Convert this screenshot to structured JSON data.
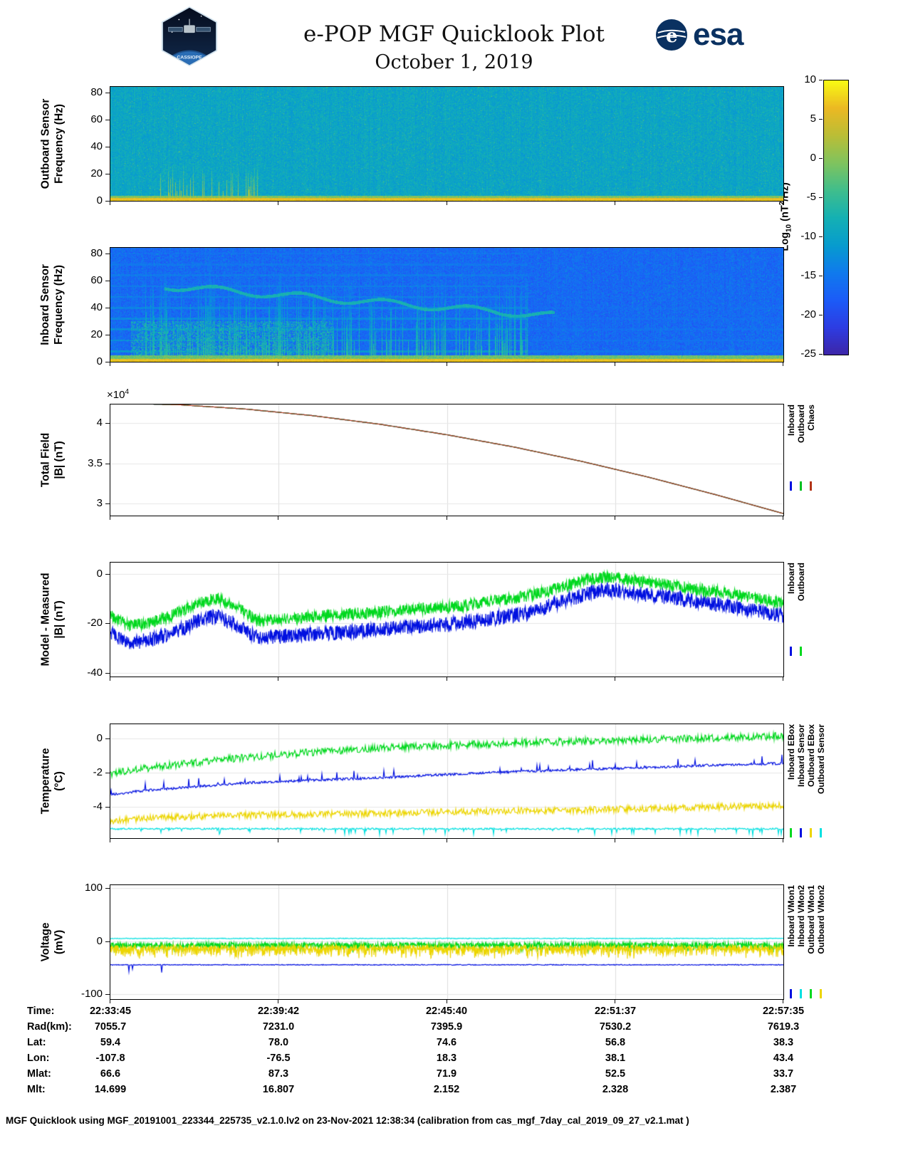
{
  "header": {
    "title": "e-POP MGF Quicklook Plot",
    "date": "October 1, 2019"
  },
  "logos": {
    "esa_text": "esa",
    "esa_emblem_letter": "e",
    "cassiope_text": "CASSIOPE"
  },
  "colors": {
    "esa_blue": "#0a3161",
    "chaos_red": "#b23418",
    "inboard_blue": "#0010e0",
    "outboard_green": "#00d81e",
    "yellow": "#ecd500",
    "cyan": "#00e0e0"
  },
  "colorbar": {
    "label_prefix": "Log",
    "label_sub": "10",
    "label_mid": " (nT",
    "label_sup": "2",
    "label_suffix": "/Hz)",
    "ticks": [
      10,
      5,
      0,
      -5,
      -10,
      -15,
      -20,
      -25
    ],
    "value_range": [
      -25,
      10
    ],
    "colormap": "parula"
  },
  "chart_data": [
    {
      "id": "outboard_spectrogram",
      "type": "heatmap",
      "ylabel": [
        "Outboard Sensor",
        "Frequency (Hz)"
      ],
      "ylim": [
        0,
        84
      ],
      "yticks": [
        0,
        20,
        40,
        60,
        80
      ],
      "time_start": "22:33:45",
      "time_end": "22:57:35",
      "value_range": [
        -25,
        10
      ],
      "background_level": -9.5,
      "noise_sigma": 2.4,
      "speckle": {
        "prob": 0.04,
        "boost": 6
      },
      "bottom_band": {
        "freq_max": 2.6,
        "level": 6.3,
        "edge_freq": 4.2,
        "edge_level": -0.5
      },
      "bursts": {
        "x_range": [
          0.07,
          0.23
        ],
        "freq_max": 30,
        "level": -1,
        "probability": 0.2
      }
    },
    {
      "id": "inboard_spectrogram",
      "type": "heatmap",
      "ylabel": [
        "Inboard Sensor",
        "Frequency (Hz)"
      ],
      "ylim": [
        0,
        84
      ],
      "yticks": [
        0,
        20,
        40,
        60,
        80
      ],
      "time_start": "22:33:45",
      "time_end": "22:57:35",
      "value_range": [
        -25,
        10
      ],
      "background_level": -16.5,
      "noise_sigma": 2.6,
      "speckle": {
        "prob": 0.05,
        "boost": 5
      },
      "bottom_band": {
        "freq_max": 2.6,
        "level": 6.3,
        "edge_freq": 5,
        "edge_level": -1.5
      },
      "harmonics": {
        "spacing": 8,
        "level": -11,
        "fade_x": 0.62
      },
      "bursts": {
        "x_range": [
          0.04,
          0.62
        ],
        "freq_max": 72,
        "level": -9,
        "probability": 0.3
      },
      "wavy_trace": {
        "x_range": [
          0.08,
          0.66
        ],
        "freq_start": 56,
        "freq_end": 34,
        "level": -7.5
      },
      "blob": {
        "x_range": [
          0.03,
          0.33
        ],
        "freq_max": 30,
        "level": -8
      }
    },
    {
      "id": "total_field",
      "type": "line",
      "ylabel": [
        "Total Field",
        "|B| (nT)"
      ],
      "ylim": [
        28500,
        42300
      ],
      "yticks": [
        30000,
        35000,
        40000
      ],
      "ytick_labels": [
        "3",
        "3.5",
        "4"
      ],
      "multiplier_prefix": "×10",
      "multiplier_exp": "4",
      "series": [
        {
          "name": "Inboard",
          "color": "#0010e0",
          "x": [
            0,
            0.1,
            0.2,
            0.3,
            0.4,
            0.5,
            0.6,
            0.7,
            0.8,
            0.9,
            1
          ],
          "y": [
            42450,
            42280,
            41740,
            40920,
            39850,
            38540,
            37010,
            35240,
            33260,
            31080,
            28750
          ]
        },
        {
          "name": "Outboard",
          "color": "#00c020",
          "x": [
            0,
            0.1,
            0.2,
            0.3,
            0.4,
            0.5,
            0.6,
            0.7,
            0.8,
            0.9,
            1
          ],
          "y": [
            42450,
            42280,
            41740,
            40920,
            39850,
            38540,
            37010,
            35240,
            33260,
            31080,
            28750
          ]
        },
        {
          "name": "Chaos",
          "color": "#b23418",
          "x": [
            0,
            0.1,
            0.2,
            0.3,
            0.4,
            0.5,
            0.6,
            0.7,
            0.8,
            0.9,
            1
          ],
          "y": [
            42450,
            42280,
            41740,
            40920,
            39850,
            38540,
            37010,
            35240,
            33260,
            31080,
            28750
          ]
        }
      ]
    },
    {
      "id": "model_minus_measured",
      "type": "line",
      "ylabel": [
        "Model - Measured",
        "|B| (nT)"
      ],
      "ylim": [
        -41.5,
        4.5
      ],
      "yticks": [
        -40,
        -20,
        0
      ],
      "series": [
        {
          "name": "Inboard",
          "color": "#0010e0",
          "noise": 3,
          "x": [
            0,
            0.03,
            0.07,
            0.1,
            0.13,
            0.16,
            0.19,
            0.22,
            0.27,
            0.32,
            0.37,
            0.42,
            0.47,
            0.52,
            0.57,
            0.62,
            0.66,
            0.7,
            0.73,
            0.76,
            0.8,
            0.84,
            0.88,
            0.92,
            0.96,
            1
          ],
          "y": [
            -24,
            -28,
            -26,
            -23,
            -19,
            -17,
            -21,
            -26,
            -25,
            -24,
            -23,
            -22,
            -21,
            -20,
            -18,
            -16,
            -12,
            -9,
            -6.5,
            -7,
            -8.5,
            -10,
            -11.5,
            -13,
            -15,
            -17
          ]
        },
        {
          "name": "Outboard",
          "color": "#00d81e",
          "noise": 2.4,
          "x": [
            0,
            0.03,
            0.07,
            0.1,
            0.13,
            0.16,
            0.19,
            0.22,
            0.27,
            0.32,
            0.37,
            0.42,
            0.47,
            0.52,
            0.57,
            0.62,
            0.66,
            0.7,
            0.73,
            0.76,
            0.8,
            0.84,
            0.88,
            0.92,
            0.96,
            1
          ],
          "y": [
            -17,
            -21,
            -19,
            -16,
            -12,
            -10,
            -14,
            -19,
            -18,
            -17,
            -16,
            -15,
            -14,
            -13,
            -11,
            -9,
            -6,
            -3,
            -1.5,
            -2,
            -3.5,
            -5,
            -6.5,
            -8,
            -10,
            -12
          ]
        }
      ]
    },
    {
      "id": "temperature",
      "type": "line",
      "ylabel": [
        "Temperature",
        "(°C)"
      ],
      "ylim": [
        -5.85,
        0.85
      ],
      "yticks": [
        -4,
        -2,
        0
      ],
      "series": [
        {
          "name": "Inboard EBox",
          "color": "#00d81e",
          "noise": 0.22,
          "x": [
            0,
            0.05,
            0.1,
            0.15,
            0.2,
            0.3,
            0.4,
            0.5,
            0.6,
            0.7,
            0.8,
            0.9,
            1
          ],
          "y": [
            -2.05,
            -1.75,
            -1.5,
            -1.3,
            -1.1,
            -0.8,
            -0.55,
            -0.4,
            -0.25,
            -0.15,
            -0.05,
            0.05,
            0.15
          ]
        },
        {
          "name": "Inboard Sensor",
          "color": "#0010e0",
          "noise": 0.07,
          "spikes": {
            "prob": 0.04,
            "amp": 0.5,
            "sign": 1
          },
          "x": [
            0,
            0.05,
            0.1,
            0.15,
            0.2,
            0.3,
            0.4,
            0.5,
            0.6,
            0.7,
            0.8,
            0.9,
            1
          ],
          "y": [
            -3.3,
            -3.05,
            -2.9,
            -2.75,
            -2.6,
            -2.45,
            -2.3,
            -2.1,
            -1.95,
            -1.8,
            -1.7,
            -1.55,
            -1.45
          ]
        },
        {
          "name": "Outboard EBox",
          "color": "#ecd500",
          "noise": 0.2,
          "x": [
            0,
            0.05,
            0.1,
            0.15,
            0.2,
            0.3,
            0.4,
            0.5,
            0.6,
            0.7,
            0.8,
            0.9,
            1
          ],
          "y": [
            -4.85,
            -4.7,
            -4.6,
            -4.55,
            -4.5,
            -4.45,
            -4.4,
            -4.3,
            -4.25,
            -4.2,
            -4.1,
            -4.0,
            -3.95
          ]
        },
        {
          "name": "Outboard Sensor",
          "color": "#00e0e0",
          "noise": 0.05,
          "spikes": {
            "prob": 0.06,
            "amp": 0.35,
            "sign": -1
          },
          "x": [
            0,
            1
          ],
          "y": [
            -5.3,
            -5.3
          ]
        }
      ]
    },
    {
      "id": "voltage",
      "type": "line",
      "ylabel": [
        "Voltage",
        "(mV)"
      ],
      "ylim": [
        -110,
        106
      ],
      "yticks": [
        -100,
        0,
        100
      ],
      "series": [
        {
          "name": "Inboard VMon1",
          "color": "#0010e0",
          "noise": 0.8,
          "spikes": {
            "prob": 0.02,
            "amp": 16,
            "sign": -1,
            "xmax": 0.08
          },
          "x": [
            0,
            1
          ],
          "y": [
            -45,
            -45
          ]
        },
        {
          "name": "Inboard VMon2",
          "color": "#00e0e0",
          "noise": 0.7,
          "x": [
            0,
            1
          ],
          "y": [
            5,
            5
          ]
        },
        {
          "name": "Outboard VMon1",
          "color": "#00d81e",
          "noise": 4,
          "spikes": {
            "prob": 0.2,
            "amp": 12,
            "sign": -1
          },
          "x": [
            0,
            1
          ],
          "y": [
            -7,
            -7
          ]
        },
        {
          "name": "Outboard VMon2",
          "color": "#ecd500",
          "noise": 5,
          "spikes": {
            "prob": 0.25,
            "amp": 16,
            "sign": -1
          },
          "x": [
            0,
            1
          ],
          "y": [
            -13,
            -13
          ]
        }
      ]
    }
  ],
  "info_table": {
    "rows": [
      {
        "label": "Time:",
        "values": [
          "22:33:45",
          "22:39:42",
          "22:45:40",
          "22:51:37",
          "22:57:35"
        ]
      },
      {
        "label": "Rad(km):",
        "values": [
          "7055.7",
          "7231.0",
          "7395.9",
          "7530.2",
          "7619.3"
        ]
      },
      {
        "label": "Lat:",
        "values": [
          "59.4",
          "78.0",
          "74.6",
          "56.8",
          "38.3"
        ]
      },
      {
        "label": "Lon:",
        "values": [
          "-107.8",
          "-76.5",
          "18.3",
          "38.1",
          "43.4"
        ]
      },
      {
        "label": "Mlat:",
        "values": [
          "66.6",
          "87.3",
          "71.9",
          "52.5",
          "33.7"
        ]
      },
      {
        "label": "Mlt:",
        "values": [
          "14.699",
          "16.807",
          "2.152",
          "2.328",
          "2.387"
        ]
      }
    ]
  },
  "footer": {
    "text": "MGF Quicklook using MGF_20191001_223344_225735_v2.1.0.lv2 on 23-Nov-2021 12:38:34 (calibration from cas_mgf_7day_cal_2019_09_27_v2.1.mat )"
  }
}
